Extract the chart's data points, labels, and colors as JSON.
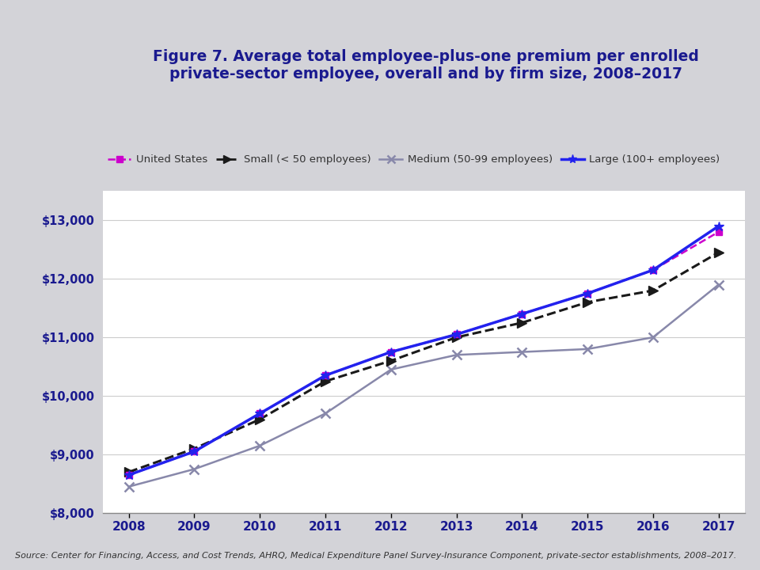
{
  "years": [
    2008,
    2009,
    2010,
    2011,
    2012,
    2013,
    2014,
    2015,
    2016,
    2017
  ],
  "united_states": [
    8650,
    9050,
    9700,
    10350,
    10750,
    11050,
    11400,
    11750,
    12150,
    12800
  ],
  "small": [
    8700,
    9100,
    9600,
    10250,
    10600,
    11000,
    11250,
    11600,
    11800,
    12450
  ],
  "medium": [
    8450,
    8750,
    9150,
    9700,
    10450,
    10700,
    10750,
    10800,
    11000,
    11900
  ],
  "large": [
    8650,
    9050,
    9700,
    10350,
    10750,
    11050,
    11400,
    11750,
    12150,
    12900
  ],
  "title_line1": "Figure 7. Average total employee-plus-one premium per enrolled",
  "title_line2": "private-sector employee, overall and by firm size, 2008–2017",
  "source_text": "Source: Center for Financing, Access, and Cost Trends, AHRQ, Medical Expenditure Panel Survey-Insurance Component, private-sector establishments, 2008–2017.",
  "us_color": "#CC00CC",
  "small_color": "#1A1A1A",
  "medium_color": "#8888AA",
  "large_color": "#2222EE",
  "title_color": "#1A1A8F",
  "bg_color": "#D3D3D8",
  "plot_bg": "#FFFFFF",
  "separator_color": "#888899",
  "ylim_min": 8000,
  "ylim_max": 13500,
  "ytick_step": 1000,
  "legend_labels": [
    "United States",
    "Small (< 50 employees)",
    "Medium (50-99 employees)",
    "Large (100+ employees)"
  ]
}
